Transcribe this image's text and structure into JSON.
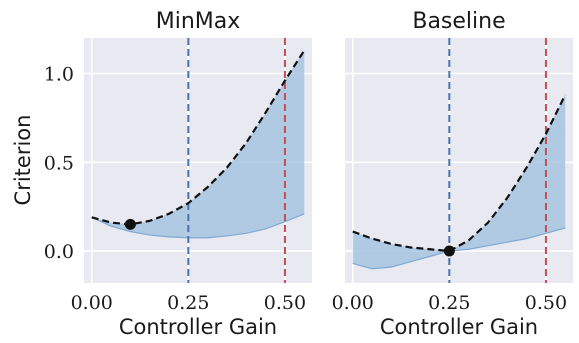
{
  "colors": {
    "panel_bg": "#e8e9f1",
    "band": "#a6c4e2",
    "band_edge": "#7ea9d3",
    "curve": "#111111",
    "vline_blue": "#4c72b0",
    "vline_red": "#c44e52",
    "marker": "#111111"
  },
  "chart_data": [
    {
      "type": "area",
      "title": "MinMax",
      "xlabel": "Controller Gain",
      "ylabel": "Criterion",
      "xlim": [
        -0.02,
        0.57
      ],
      "ylim": [
        -0.18,
        1.2
      ],
      "xticks": [
        0.0,
        0.25,
        0.5
      ],
      "xtick_labels": [
        "0.00",
        "0.25",
        "0.50"
      ],
      "yticks": [
        0.0,
        0.5,
        1.0
      ],
      "ytick_labels": [
        "0.0",
        "0.5",
        "1.0"
      ],
      "grid": true,
      "x": [
        0.0,
        0.05,
        0.1,
        0.15,
        0.2,
        0.25,
        0.3,
        0.35,
        0.4,
        0.45,
        0.5,
        0.55
      ],
      "curve": [
        0.19,
        0.16,
        0.15,
        0.17,
        0.21,
        0.27,
        0.36,
        0.47,
        0.61,
        0.78,
        0.96,
        1.13
      ],
      "band_lower": [
        0.19,
        0.14,
        0.11,
        0.09,
        0.08,
        0.075,
        0.075,
        0.085,
        0.1,
        0.125,
        0.165,
        0.21
      ],
      "marker": {
        "x": 0.1,
        "y": 0.15
      },
      "vlines": [
        {
          "x": 0.25,
          "color": "blue"
        },
        {
          "x": 0.5,
          "color": "red"
        }
      ]
    },
    {
      "type": "area",
      "title": "Baseline",
      "xlabel": "Controller Gain",
      "ylabel": "",
      "xlim": [
        -0.02,
        0.57
      ],
      "ylim": [
        -0.18,
        1.2
      ],
      "xticks": [
        0.0,
        0.25,
        0.5
      ],
      "xtick_labels": [
        "0.00",
        "0.25",
        "0.50"
      ],
      "yticks": [
        0.0,
        0.5,
        1.0
      ],
      "ytick_labels": [],
      "grid": true,
      "x": [
        0.0,
        0.05,
        0.1,
        0.15,
        0.2,
        0.25,
        0.3,
        0.35,
        0.4,
        0.45,
        0.5,
        0.55
      ],
      "curve": [
        0.11,
        0.07,
        0.04,
        0.02,
        0.01,
        0.0,
        0.06,
        0.16,
        0.3,
        0.47,
        0.66,
        0.88
      ],
      "band_lower": [
        -0.07,
        -0.1,
        -0.09,
        -0.06,
        -0.03,
        0.0,
        0.01,
        0.03,
        0.05,
        0.07,
        0.1,
        0.13
      ],
      "marker": {
        "x": 0.25,
        "y": 0.0
      },
      "vlines": [
        {
          "x": 0.25,
          "color": "blue"
        },
        {
          "x": 0.5,
          "color": "red"
        }
      ]
    }
  ]
}
